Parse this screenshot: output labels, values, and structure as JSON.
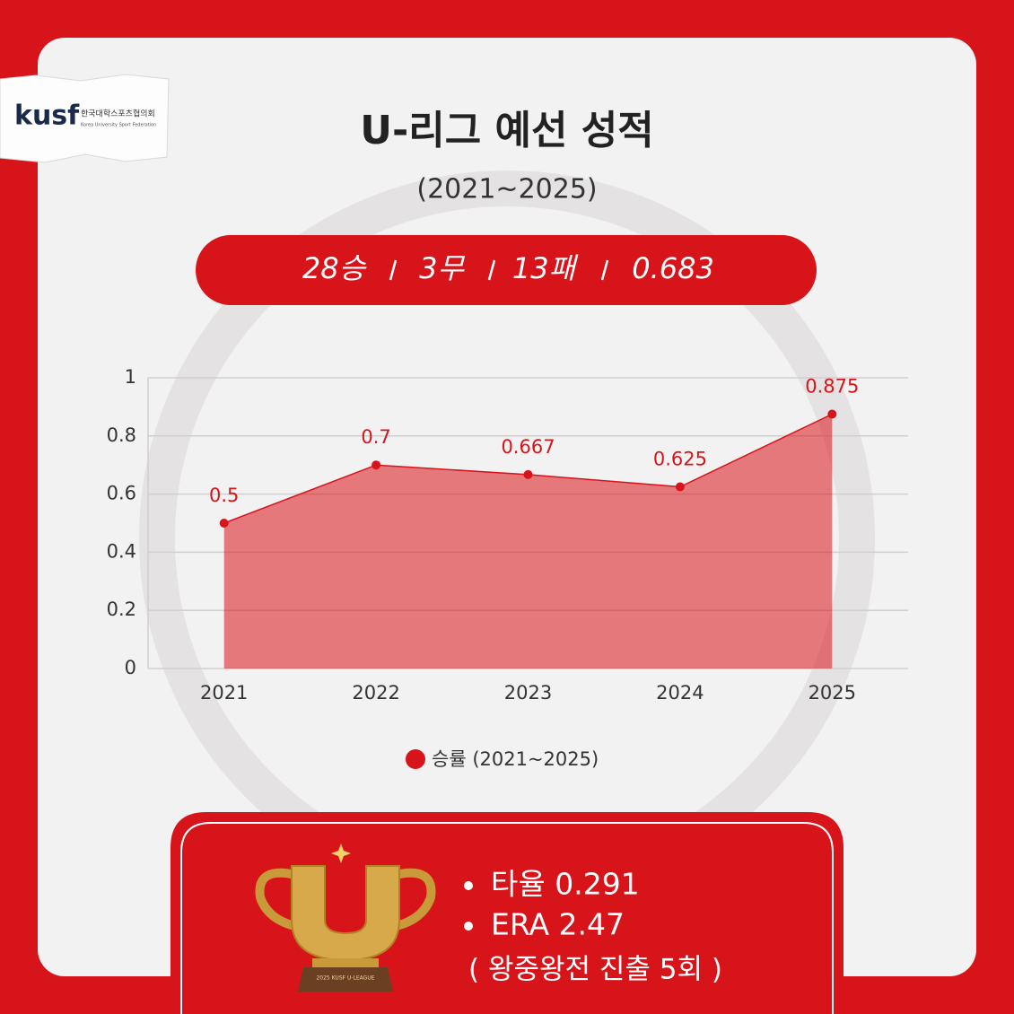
{
  "logo": {
    "mark": "kusf",
    "name_ko": "한국대학스포츠협의회",
    "name_en": "Korea University Sport Federation"
  },
  "header": {
    "title": "U-리그 예선 성적",
    "subtitle": "(2021~2025)"
  },
  "record": [
    "28승",
    "3무",
    "13패",
    "0.683"
  ],
  "chart_data": {
    "type": "area",
    "categories": [
      "2021",
      "2022",
      "2023",
      "2024",
      "2025"
    ],
    "series": [
      {
        "name": "승률 (2021~2025)",
        "color": "#d7141a",
        "values": [
          0.5,
          0.7,
          0.667,
          0.625,
          0.875
        ]
      }
    ],
    "ylim": [
      0,
      1
    ],
    "yticks": [
      0,
      0.2,
      0.4,
      0.6,
      0.8,
      1
    ],
    "grid": true,
    "legend": "bottom"
  },
  "trophy": {
    "label": "2025 KUSF U-LEAGUE"
  },
  "stats": {
    "items": [
      "타율 0.291",
      "ERA 2.47"
    ],
    "note": "( 왕중왕전 진출 5회 )"
  }
}
